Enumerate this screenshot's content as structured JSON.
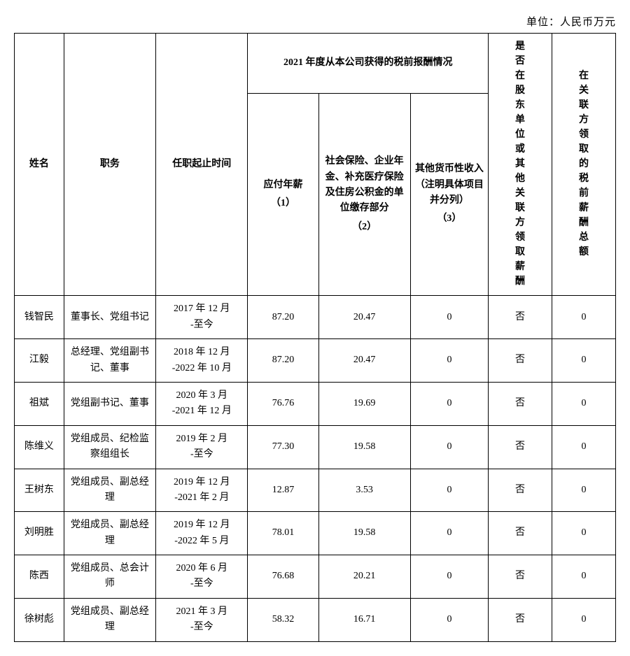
{
  "unit_label": "单位：人民币万元",
  "headers": {
    "name": "姓名",
    "position": "职务",
    "term": "任职起止时间",
    "group_2021": "2021 年度从本公司获得的税前报酬情况",
    "salary_label": "应付年薪",
    "salary_num": "（1）",
    "social_label": "社会保险、企业年金、补充医疗保险及住房公积金的单位缴存部分",
    "social_num": "（2）",
    "other_label": "其他货币性收入（注明具体项目并分列）",
    "other_num": "（3）",
    "shareholder": "是否在股东单位或其他关联方领取薪酬",
    "related": "在关联方领取的税前薪酬总额"
  },
  "rows": [
    {
      "name": "钱智民",
      "position": "董事长、党组书记",
      "term": "2017 年 12 月\n-至今",
      "salary": "87.20",
      "social": "20.47",
      "other": "0",
      "shareholder": "否",
      "related": "0"
    },
    {
      "name": "江毅",
      "position": "总经理、党组副书记、董事",
      "term": "2018 年 12 月\n-2022 年 10 月",
      "salary": "87.20",
      "social": "20.47",
      "other": "0",
      "shareholder": "否",
      "related": "0"
    },
    {
      "name": "祖斌",
      "position": "党组副书记、董事",
      "term": "2020 年 3 月\n-2021 年 12 月",
      "salary": "76.76",
      "social": "19.69",
      "other": "0",
      "shareholder": "否",
      "related": "0"
    },
    {
      "name": "陈维义",
      "position": "党组成员、纪检监察组组长",
      "term": "2019 年 2 月\n-至今",
      "salary": "77.30",
      "social": "19.58",
      "other": "0",
      "shareholder": "否",
      "related": "0"
    },
    {
      "name": "王树东",
      "position": "党组成员、副总经理",
      "term": "2019 年 12 月\n-2021 年 2 月",
      "salary": "12.87",
      "social": "3.53",
      "other": "0",
      "shareholder": "否",
      "related": "0"
    },
    {
      "name": "刘明胜",
      "position": "党组成员、副总经理",
      "term": "2019 年 12 月\n-2022 年 5 月",
      "salary": "78.01",
      "social": "19.58",
      "other": "0",
      "shareholder": "否",
      "related": "0"
    },
    {
      "name": "陈西",
      "position": "党组成员、总会计师",
      "term": "2020 年 6 月\n-至今",
      "salary": "76.68",
      "social": "20.21",
      "other": "0",
      "shareholder": "否",
      "related": "0"
    },
    {
      "name": "徐树彪",
      "position": "党组成员、副总经理",
      "term": "2021 年 3 月\n-至今",
      "salary": "58.32",
      "social": "16.71",
      "other": "0",
      "shareholder": "否",
      "related": "0"
    }
  ]
}
